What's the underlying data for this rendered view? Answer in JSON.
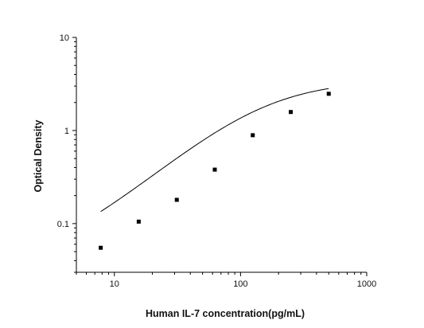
{
  "chart_data": {
    "type": "scatter",
    "title": "",
    "xlabel": "Human IL-7 concentration(pg/mL)",
    "ylabel": "Optical Density",
    "x_scale": "log",
    "y_scale": "log",
    "xlim": [
      5,
      1000
    ],
    "ylim": [
      0.03,
      10
    ],
    "x_ticks": [
      {
        "value": 10,
        "label": "10"
      },
      {
        "value": 100,
        "label": "100"
      },
      {
        "value": 1000,
        "label": "1000"
      }
    ],
    "y_ticks": [
      {
        "value": 0.1,
        "label": "0.1"
      },
      {
        "value": 1,
        "label": "1"
      },
      {
        "value": 10,
        "label": "10"
      }
    ],
    "grid": false,
    "legend": "none",
    "points": [
      {
        "x": 7.8,
        "y": 0.055
      },
      {
        "x": 15.6,
        "y": 0.105
      },
      {
        "x": 31.25,
        "y": 0.18
      },
      {
        "x": 62.5,
        "y": 0.38
      },
      {
        "x": 125,
        "y": 0.89
      },
      {
        "x": 250,
        "y": 1.58
      },
      {
        "x": 500,
        "y": 2.48
      }
    ],
    "fit_curve": {
      "type": "4PL",
      "bottom": 0.032,
      "top": 3.5,
      "ec50": 150,
      "hill": 1.18,
      "x_range": [
        7.8,
        500
      ]
    },
    "colors": {
      "marker": "#000000",
      "line": "#000000",
      "axis": "#000000"
    }
  }
}
